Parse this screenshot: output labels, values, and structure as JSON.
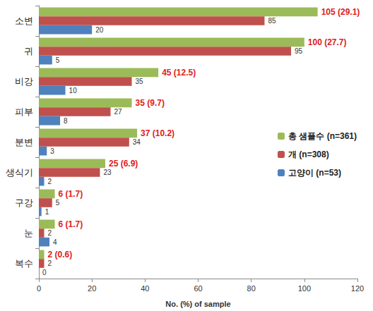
{
  "chart_data": {
    "type": "bar",
    "orientation": "horizontal",
    "categories": [
      "소변",
      "귀",
      "비강",
      "피부",
      "분변",
      "생식기",
      "구강",
      "눈",
      "복수"
    ],
    "series": [
      {
        "name": "총 샘플수 (n=361)",
        "color": "#9bbb59",
        "values": [
          105,
          100,
          45,
          35,
          37,
          25,
          6,
          6,
          2
        ],
        "value_labels": [
          "105 (29.1)",
          "100 (27.7)",
          "45 (12.5)",
          "35 (9.7)",
          "37 (10.2)",
          "25 (6.9)",
          "6 (1.7)",
          "6 (1.7)",
          "2 (0.6)"
        ]
      },
      {
        "name": "개 (n=308)",
        "color": "#c0504d",
        "values": [
          85,
          95,
          35,
          27,
          34,
          23,
          5,
          2,
          2
        ]
      },
      {
        "name": "고양이 (n=53)",
        "color": "#4f81bd",
        "values": [
          20,
          5,
          10,
          8,
          3,
          2,
          1,
          4,
          0
        ]
      }
    ],
    "xlabel": "No. (%) of sample",
    "xlim": [
      0,
      120
    ],
    "xticks": [
      0,
      20,
      40,
      60,
      80,
      100,
      120
    ],
    "data_labels": true,
    "legend": "right",
    "grid": false
  }
}
